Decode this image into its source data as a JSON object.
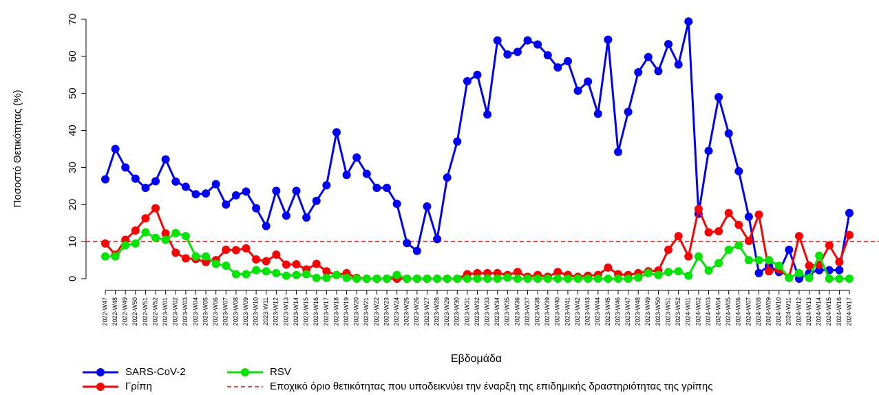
{
  "chart_data": {
    "type": "line",
    "y_label": "Ποσοστό Θετικότητας (%)",
    "x_label": "Εβδομάδα",
    "categories": [
      "2022-W47",
      "2022-W48",
      "2022-W49",
      "2022-W50",
      "2022-W51",
      "2022-W52",
      "2023-W01",
      "2023-W02",
      "2023-W03",
      "2023-W04",
      "2023-W05",
      "2023-W06",
      "2023-W07",
      "2023-W08",
      "2023-W09",
      "2023-W10",
      "2023-W11",
      "2023-W12",
      "2023-W13",
      "2023-W14",
      "2023-W15",
      "2023-W16",
      "2023-W17",
      "2023-W18",
      "2023-W19",
      "2023-W20",
      "2023-W21",
      "2023-W22",
      "2023-W23",
      "2023-W24",
      "2023-W25",
      "2023-W26",
      "2023-W27",
      "2023-W28",
      "2023-W29",
      "2023-W30",
      "2023-W31",
      "2023-W32",
      "2023-W33",
      "2023-W34",
      "2023-W35",
      "2023-W36",
      "2023-W37",
      "2023-W38",
      "2023-W39",
      "2023-W40",
      "2023-W41",
      "2023-W42",
      "2023-W43",
      "2023-W44",
      "2023-W45",
      "2023-W46",
      "2023-W47",
      "2023-W48",
      "2023-W49",
      "2023-W50",
      "2023-W51",
      "2023-W52",
      "2024-W01",
      "2024-W02",
      "2024-W03",
      "2024-W04",
      "2024-W05",
      "2024-W06",
      "2024-W07",
      "2024-W08",
      "2024-W09",
      "2024-W10",
      "2024-W11",
      "2024-W12",
      "2024-W13",
      "2024-W14",
      "2024-W15",
      "2024-W16",
      "2024-W17"
    ],
    "series": [
      {
        "name": "SARS-CoV-2",
        "color": "#0000ff",
        "values": [
          26.8,
          35,
          30,
          27,
          24.5,
          26.3,
          32.2,
          26.2,
          24.8,
          22.8,
          23,
          25.5,
          20,
          22.5,
          23.5,
          19,
          14.2,
          23.7,
          17,
          23.7,
          16.5,
          21,
          25.2,
          39.5,
          28,
          32.7,
          28.3,
          24.5,
          24.5,
          20.2,
          9.6,
          7.5,
          19.5,
          10.7,
          27.3,
          37,
          53.3,
          55,
          44.3,
          64.3,
          60.5,
          61.2,
          64.3,
          63.2,
          60.3,
          57,
          58.7,
          50.7,
          53.2,
          44.5,
          64.5,
          34.2,
          45,
          55.7,
          59.8,
          56,
          63.3,
          57.8,
          69.4,
          17.5,
          34.5,
          49,
          39.2,
          29,
          16.7,
          1.5,
          3.5,
          1.8,
          7.8,
          0,
          1.5,
          2.3,
          2.3,
          2.3,
          17.7
        ]
      },
      {
        "name": "Γρίπη",
        "color": "#ff0000",
        "values": [
          9.5,
          6.5,
          10.5,
          13,
          16.3,
          19,
          12.2,
          7,
          5.5,
          5.3,
          4.5,
          5,
          7.8,
          7.7,
          8.2,
          5.2,
          4.7,
          6.5,
          3.8,
          3.9,
          2.5,
          4,
          2,
          1,
          1.5,
          0.2,
          0,
          0,
          0,
          0,
          0,
          0,
          0,
          0,
          0,
          0,
          1.2,
          1.5,
          1.5,
          1.5,
          1,
          1.8,
          0.5,
          1,
          0.5,
          1.8,
          1,
          0.5,
          0.8,
          1,
          3,
          1.2,
          1,
          1.5,
          2,
          2.2,
          7.8,
          11.5,
          6,
          18.8,
          12.5,
          12.8,
          17.7,
          14.5,
          10.2,
          17.3,
          2,
          2.5,
          0.3,
          11.5,
          3.5,
          3.8,
          9,
          4.5,
          11.8
        ]
      },
      {
        "name": "RSV",
        "color": "#00e600",
        "values": [
          6,
          6,
          9,
          9.5,
          12.5,
          11,
          10.5,
          12.3,
          11.5,
          6,
          6,
          4,
          3.5,
          1.2,
          1.2,
          2.3,
          2,
          1.5,
          0.8,
          1,
          1.2,
          0.2,
          0.2,
          1,
          0.2,
          0,
          0,
          0,
          0,
          1,
          0,
          0,
          0,
          0,
          0,
          0,
          0,
          0,
          0,
          0,
          0.3,
          0,
          0,
          0,
          0,
          0,
          0,
          0,
          0,
          0,
          0,
          0,
          0,
          0.3,
          1.5,
          1,
          1.8,
          2,
          0.8,
          6,
          2.2,
          4.2,
          7.8,
          9,
          5,
          5,
          5,
          3.5,
          0.2,
          1.5,
          0.2,
          6.2,
          0,
          0,
          0
        ]
      }
    ],
    "threshold": 10,
    "threshold_label": "Εποχικό όριο θετικότητας που υποδεικνύει την έναρξη της επιδημικής δραστηριότητας της γρίπης",
    "threshold_color": "#ff0000",
    "ylim": [
      0,
      70
    ],
    "yticks": [
      0,
      10,
      20,
      30,
      40,
      50,
      60,
      70
    ]
  }
}
